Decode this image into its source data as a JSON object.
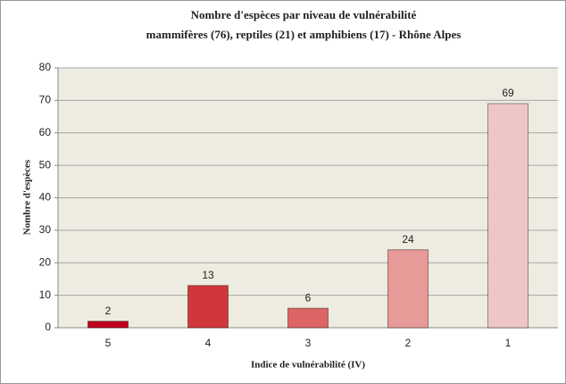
{
  "chart_data": {
    "type": "bar",
    "title": "Nombre d'espèces par niveau de vulnérabilité",
    "subtitle": "mammifères (76), reptiles   (21) et amphibiens   (17) - Rhône Alpes",
    "x_label": "Indice de vulnérabilité (IV)",
    "y_label": "Nombre d'espèces",
    "categories": [
      "5",
      "4",
      "3",
      "2",
      "1"
    ],
    "values": [
      2,
      13,
      6,
      24,
      69
    ],
    "colors": [
      "#c0001c",
      "#d0363a",
      "#dc6464",
      "#e79a98",
      "#efc6c8"
    ],
    "ylim": [
      0,
      80
    ],
    "yticks": [
      0,
      10,
      20,
      30,
      40,
      50,
      60,
      70,
      80
    ],
    "grid": true
  }
}
